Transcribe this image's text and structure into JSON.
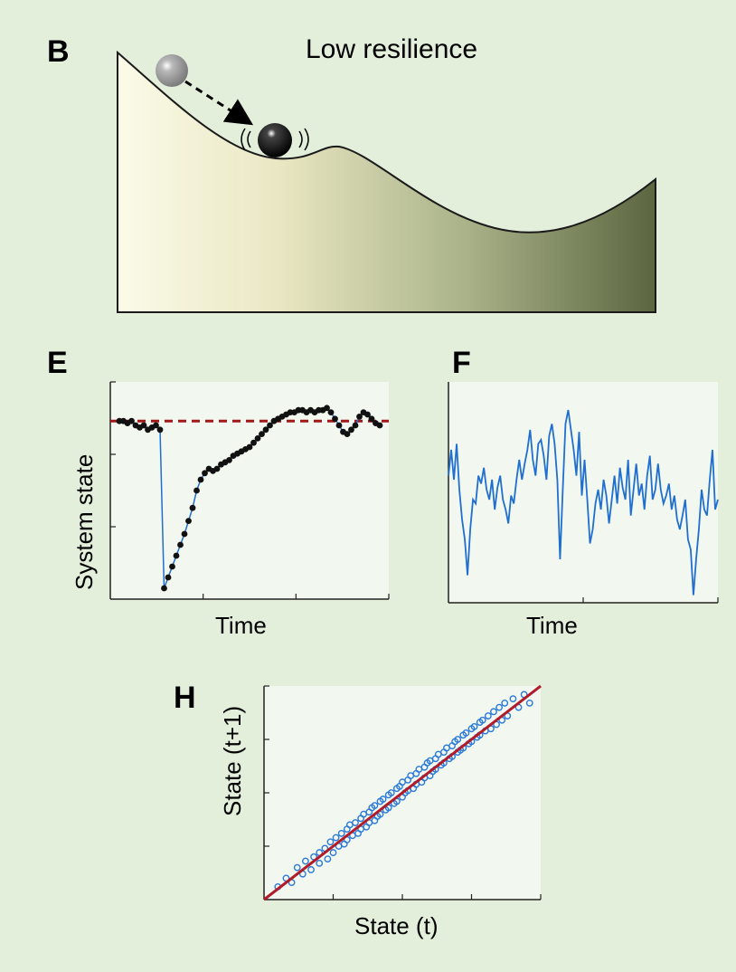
{
  "panel_b": {
    "letter": "B",
    "title": "Low resilience"
  },
  "chart_data": [
    {
      "panel": "E",
      "type": "line",
      "xlabel": "Time",
      "ylabel": "System state",
      "grid": false,
      "reference_line": {
        "y": 0.82,
        "style": "dashed",
        "color": "#a01818"
      },
      "ylim": [
        0,
        1
      ],
      "x": [
        0,
        1,
        2,
        3,
        4,
        5,
        6,
        7,
        8,
        9,
        10,
        11,
        12,
        13,
        14,
        15,
        16,
        17,
        18,
        19,
        20,
        21,
        22,
        23,
        24,
        25,
        26,
        27,
        28,
        29,
        30,
        31,
        32,
        33,
        34,
        35,
        36,
        37,
        38,
        39,
        40,
        41,
        42,
        43,
        44,
        45,
        46,
        47,
        48,
        49,
        50,
        51,
        52,
        53,
        54,
        55,
        56,
        57,
        58,
        59,
        60,
        61,
        62,
        63,
        64
      ],
      "values": [
        0.82,
        0.82,
        0.81,
        0.82,
        0.8,
        0.79,
        0.8,
        0.78,
        0.79,
        0.8,
        0.78,
        0.05,
        0.1,
        0.15,
        0.2,
        0.25,
        0.3,
        0.36,
        0.42,
        0.5,
        0.55,
        0.58,
        0.6,
        0.59,
        0.6,
        0.62,
        0.63,
        0.64,
        0.66,
        0.67,
        0.68,
        0.69,
        0.7,
        0.72,
        0.74,
        0.76,
        0.78,
        0.8,
        0.82,
        0.83,
        0.84,
        0.85,
        0.86,
        0.86,
        0.87,
        0.87,
        0.86,
        0.87,
        0.86,
        0.87,
        0.87,
        0.88,
        0.86,
        0.83,
        0.8,
        0.77,
        0.76,
        0.78,
        0.8,
        0.84,
        0.86,
        0.85,
        0.83,
        0.81,
        0.8
      ],
      "series_color": "#1f6fd0",
      "marker_color": "#111111"
    },
    {
      "panel": "F",
      "type": "line",
      "xlabel": "Time",
      "ylabel": "",
      "grid": false,
      "ylim": [
        0,
        1
      ],
      "x": [
        0,
        1,
        2,
        3,
        4,
        5,
        6,
        7,
        8,
        9,
        10,
        11,
        12,
        13,
        14,
        15,
        16,
        17,
        18,
        19,
        20,
        21,
        22,
        23,
        24,
        25,
        26,
        27,
        28,
        29,
        30,
        31,
        32,
        33,
        34,
        35,
        36,
        37,
        38,
        39,
        40,
        41,
        42,
        43,
        44,
        45,
        46,
        47,
        48,
        49,
        50,
        51,
        52,
        53,
        54,
        55,
        56,
        57,
        58,
        59,
        60,
        61,
        62,
        63,
        64,
        65,
        66,
        67,
        68,
        69,
        70,
        71,
        72,
        73,
        74,
        75,
        76,
        77,
        78,
        79,
        80,
        81,
        82,
        83,
        84,
        85,
        86,
        87,
        88,
        89,
        90,
        91,
        92,
        93,
        94,
        95,
        96,
        97,
        98,
        99
      ],
      "values": [
        0.62,
        0.75,
        0.6,
        0.78,
        0.55,
        0.4,
        0.3,
        0.12,
        0.35,
        0.5,
        0.48,
        0.62,
        0.58,
        0.66,
        0.55,
        0.5,
        0.6,
        0.45,
        0.56,
        0.62,
        0.5,
        0.45,
        0.38,
        0.52,
        0.48,
        0.6,
        0.7,
        0.6,
        0.68,
        0.75,
        0.85,
        0.7,
        0.62,
        0.78,
        0.8,
        0.72,
        0.6,
        0.82,
        0.88,
        0.78,
        0.6,
        0.2,
        0.55,
        0.88,
        0.95,
        0.85,
        0.75,
        0.62,
        0.84,
        0.52,
        0.7,
        0.5,
        0.28,
        0.35,
        0.48,
        0.55,
        0.45,
        0.6,
        0.52,
        0.38,
        0.5,
        0.62,
        0.48,
        0.66,
        0.56,
        0.5,
        0.7,
        0.42,
        0.55,
        0.68,
        0.52,
        0.58,
        0.45,
        0.62,
        0.72,
        0.5,
        0.55,
        0.68,
        0.55,
        0.48,
        0.52,
        0.58,
        0.45,
        0.52,
        0.4,
        0.35,
        0.42,
        0.5,
        0.3,
        0.25,
        0.02,
        0.2,
        0.35,
        0.55,
        0.45,
        0.42,
        0.6,
        0.75,
        0.45,
        0.5
      ],
      "series_color": "#1f6fd0"
    },
    {
      "panel": "H",
      "type": "scatter",
      "xlabel": "State (t)",
      "ylabel": "State (t+1)",
      "grid": false,
      "xlim": [
        0,
        1
      ],
      "ylim": [
        0,
        1
      ],
      "regression_line": {
        "x": [
          0,
          1
        ],
        "y": [
          0,
          1
        ],
        "color": "#b01c2a"
      },
      "point_color": "#2a7ad8",
      "points": [
        [
          0.05,
          0.06
        ],
        [
          0.08,
          0.1
        ],
        [
          0.1,
          0.08
        ],
        [
          0.12,
          0.15
        ],
        [
          0.14,
          0.12
        ],
        [
          0.15,
          0.18
        ],
        [
          0.17,
          0.14
        ],
        [
          0.18,
          0.2
        ],
        [
          0.2,
          0.22
        ],
        [
          0.2,
          0.17
        ],
        [
          0.22,
          0.24
        ],
        [
          0.23,
          0.19
        ],
        [
          0.24,
          0.27
        ],
        [
          0.25,
          0.22
        ],
        [
          0.26,
          0.29
        ],
        [
          0.27,
          0.25
        ],
        [
          0.28,
          0.31
        ],
        [
          0.29,
          0.26
        ],
        [
          0.3,
          0.33
        ],
        [
          0.3,
          0.28
        ],
        [
          0.31,
          0.35
        ],
        [
          0.32,
          0.3
        ],
        [
          0.33,
          0.36
        ],
        [
          0.34,
          0.31
        ],
        [
          0.35,
          0.38
        ],
        [
          0.35,
          0.33
        ],
        [
          0.36,
          0.4
        ],
        [
          0.37,
          0.34
        ],
        [
          0.38,
          0.41
        ],
        [
          0.38,
          0.36
        ],
        [
          0.39,
          0.43
        ],
        [
          0.4,
          0.37
        ],
        [
          0.4,
          0.44
        ],
        [
          0.41,
          0.39
        ],
        [
          0.42,
          0.46
        ],
        [
          0.42,
          0.4
        ],
        [
          0.43,
          0.47
        ],
        [
          0.44,
          0.42
        ],
        [
          0.45,
          0.49
        ],
        [
          0.45,
          0.43
        ],
        [
          0.46,
          0.5
        ],
        [
          0.47,
          0.45
        ],
        [
          0.48,
          0.52
        ],
        [
          0.48,
          0.46
        ],
        [
          0.49,
          0.53
        ],
        [
          0.5,
          0.48
        ],
        [
          0.5,
          0.55
        ],
        [
          0.51,
          0.5
        ],
        [
          0.52,
          0.56
        ],
        [
          0.52,
          0.51
        ],
        [
          0.53,
          0.58
        ],
        [
          0.54,
          0.52
        ],
        [
          0.55,
          0.59
        ],
        [
          0.55,
          0.54
        ],
        [
          0.56,
          0.61
        ],
        [
          0.57,
          0.55
        ],
        [
          0.58,
          0.62
        ],
        [
          0.58,
          0.57
        ],
        [
          0.59,
          0.64
        ],
        [
          0.6,
          0.58
        ],
        [
          0.6,
          0.65
        ],
        [
          0.61,
          0.6
        ],
        [
          0.62,
          0.66
        ],
        [
          0.62,
          0.61
        ],
        [
          0.63,
          0.68
        ],
        [
          0.64,
          0.63
        ],
        [
          0.65,
          0.69
        ],
        [
          0.65,
          0.64
        ],
        [
          0.66,
          0.71
        ],
        [
          0.67,
          0.66
        ],
        [
          0.68,
          0.72
        ],
        [
          0.68,
          0.67
        ],
        [
          0.69,
          0.74
        ],
        [
          0.7,
          0.69
        ],
        [
          0.7,
          0.75
        ],
        [
          0.71,
          0.7
        ],
        [
          0.72,
          0.77
        ],
        [
          0.72,
          0.71
        ],
        [
          0.73,
          0.78
        ],
        [
          0.74,
          0.73
        ],
        [
          0.75,
          0.8
        ],
        [
          0.75,
          0.74
        ],
        [
          0.76,
          0.81
        ],
        [
          0.77,
          0.76
        ],
        [
          0.78,
          0.83
        ],
        [
          0.78,
          0.77
        ],
        [
          0.79,
          0.84
        ],
        [
          0.8,
          0.79
        ],
        [
          0.81,
          0.86
        ],
        [
          0.82,
          0.8
        ],
        [
          0.83,
          0.88
        ],
        [
          0.84,
          0.82
        ],
        [
          0.85,
          0.9
        ],
        [
          0.86,
          0.84
        ],
        [
          0.87,
          0.92
        ],
        [
          0.88,
          0.86
        ],
        [
          0.9,
          0.94
        ],
        [
          0.92,
          0.9
        ],
        [
          0.94,
          0.96
        ],
        [
          0.96,
          0.92
        ]
      ]
    }
  ],
  "panel_e": {
    "letter": "E",
    "xlabel": "Time",
    "ylabel": "System state"
  },
  "panel_f": {
    "letter": "F",
    "xlabel": "Time"
  },
  "panel_h": {
    "letter": "H",
    "xlabel": "State (t)",
    "ylabel": "State (t+1)"
  }
}
